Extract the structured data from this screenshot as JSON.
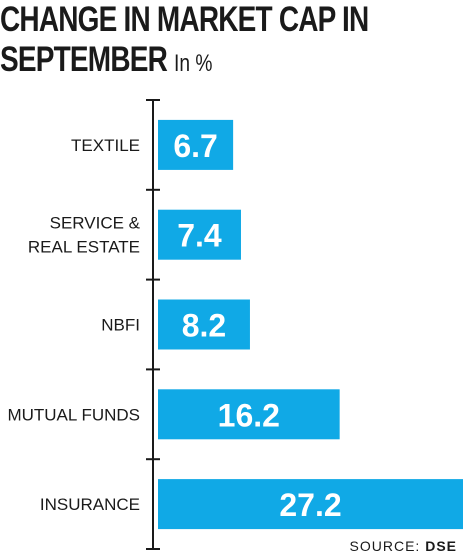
{
  "chart_data": {
    "type": "bar",
    "orientation": "horizontal",
    "title_line1": "CHANGE IN MARKET CAP IN",
    "title_line2": "SEPTEMBER",
    "unit": "In %",
    "categories": [
      [
        "TEXTILE"
      ],
      [
        "SERVICE &",
        "REAL ESTATE"
      ],
      [
        "NBFI"
      ],
      [
        "MUTUAL FUNDS"
      ],
      [
        "INSURANCE"
      ]
    ],
    "values": [
      6.7,
      7.4,
      8.2,
      16.2,
      27.2
    ],
    "value_labels": [
      "6.7",
      "7.4",
      "8.2",
      "16.2",
      "27.2"
    ],
    "xlim": [
      0,
      27.2
    ],
    "grid": false,
    "legend": "none",
    "bar_color": "#10a9e6"
  },
  "source": {
    "prefix": "SOURCE:",
    "name": "DSE"
  }
}
